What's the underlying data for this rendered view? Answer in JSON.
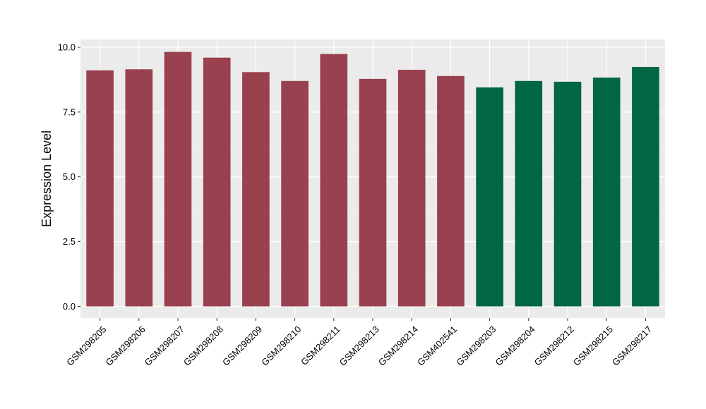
{
  "chart_data": {
    "type": "bar",
    "title": "",
    "xlabel": "",
    "ylabel": "Expression Level",
    "ylim": [
      -0.45,
      10.3
    ],
    "yticks": [
      0.0,
      2.5,
      5.0,
      7.5,
      10.0
    ],
    "ytick_labels": [
      "0.0",
      "2.5",
      "5.0",
      "7.5",
      "10.0"
    ],
    "grid": true,
    "categories": [
      "GSM298205",
      "GSM298206",
      "GSM298207",
      "GSM298208",
      "GSM298209",
      "GSM298210",
      "GSM298211",
      "GSM298213",
      "GSM298214",
      "GSM402541",
      "GSM298203",
      "GSM298204",
      "GSM298212",
      "GSM298215",
      "GSM298217"
    ],
    "values": [
      9.11,
      9.15,
      9.82,
      9.6,
      9.04,
      8.7,
      9.74,
      8.78,
      9.13,
      8.89,
      8.45,
      8.7,
      8.67,
      8.83,
      9.24
    ],
    "group_index": [
      0,
      0,
      0,
      0,
      0,
      0,
      0,
      0,
      0,
      0,
      1,
      1,
      1,
      1,
      1
    ],
    "colors": {
      "group_colors": [
        "#99414f",
        "#006643"
      ],
      "panel_background": "#ebebeb",
      "grid_major": "#ffffff",
      "grid_minor": "#f5f5f5",
      "tick": "#333333"
    }
  }
}
